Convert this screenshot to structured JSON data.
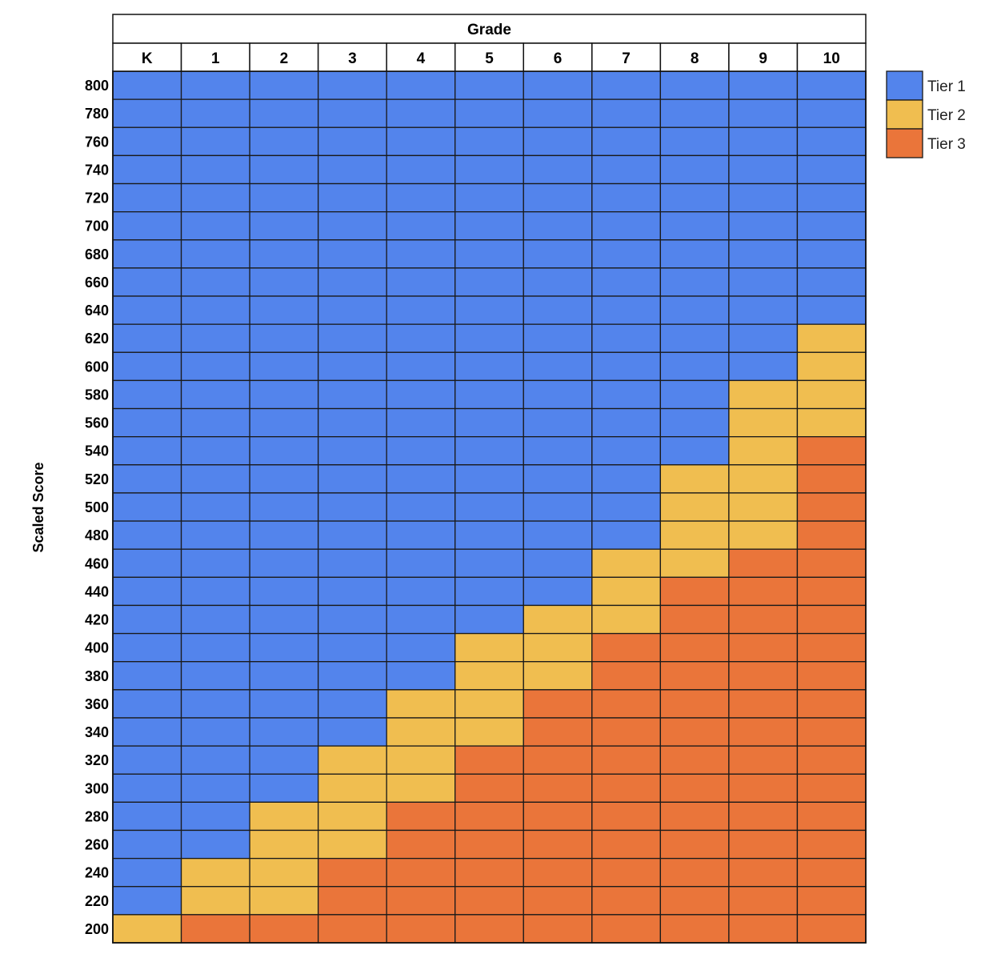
{
  "chart_data": {
    "type": "heatmap",
    "title": "",
    "header_label": "Grade",
    "ylabel": "Scaled Score",
    "grades": [
      "K",
      "1",
      "2",
      "3",
      "4",
      "5",
      "6",
      "7",
      "8",
      "9",
      "10"
    ],
    "scores": [
      800,
      780,
      760,
      740,
      720,
      700,
      680,
      660,
      640,
      620,
      600,
      580,
      560,
      540,
      520,
      500,
      480,
      460,
      440,
      420,
      400,
      380,
      360,
      340,
      320,
      300,
      280,
      260,
      240,
      220,
      200
    ],
    "tier2_ranges": [
      {
        "grade": "K",
        "min": 200,
        "max": 200
      },
      {
        "grade": "1",
        "min": 220,
        "max": 240
      },
      {
        "grade": "2",
        "min": 220,
        "max": 280
      },
      {
        "grade": "3",
        "min": 260,
        "max": 320
      },
      {
        "grade": "4",
        "min": 300,
        "max": 360
      },
      {
        "grade": "5",
        "min": 340,
        "max": 400
      },
      {
        "grade": "6",
        "min": 380,
        "max": 420
      },
      {
        "grade": "7",
        "min": 420,
        "max": 460
      },
      {
        "grade": "8",
        "min": 460,
        "max": 520
      },
      {
        "grade": "9",
        "min": 480,
        "max": 580
      },
      {
        "grade": "10",
        "min": 560,
        "max": 620
      }
    ],
    "legend": [
      {
        "name": "Tier 1",
        "color": "#5384ec"
      },
      {
        "name": "Tier 2",
        "color": "#f0be50"
      },
      {
        "name": "Tier 3",
        "color": "#ea753a"
      }
    ],
    "legend_position": "top-right",
    "grid": true
  }
}
